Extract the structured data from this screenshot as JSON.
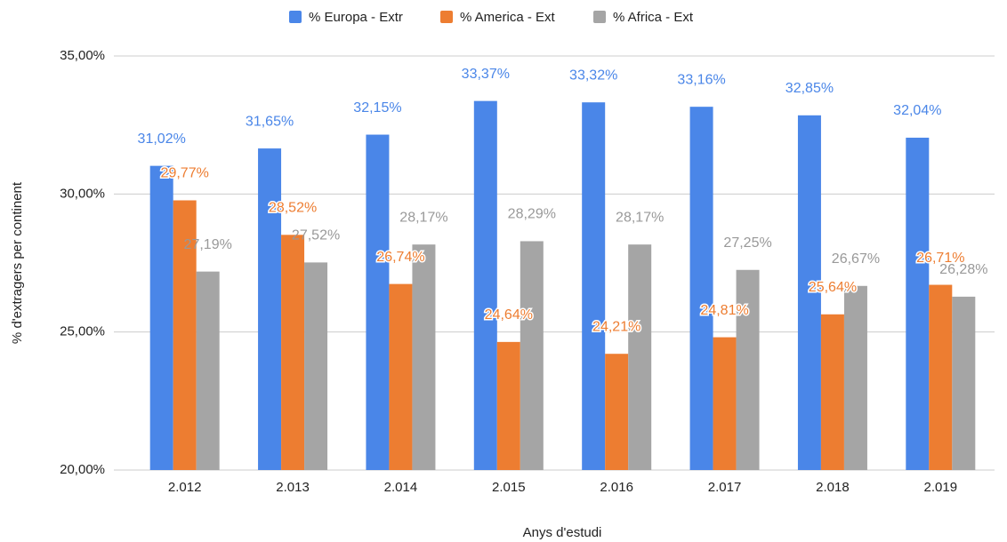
{
  "chart_data": {
    "type": "bar",
    "x_label": "Anys d'estudi",
    "y_label": "% d'extragers per continent",
    "categories": [
      "2.012",
      "2.013",
      "2.014",
      "2.015",
      "2.016",
      "2.017",
      "2.018",
      "2.019"
    ],
    "series": [
      {
        "name": "% Europa - Extr",
        "color": "#4a86e8",
        "values": [
          31.02,
          31.65,
          32.15,
          33.37,
          33.32,
          33.16,
          32.85,
          32.04
        ],
        "value_labels": [
          "31,02%",
          "31,65%",
          "32,15%",
          "33,37%",
          "33,32%",
          "33,16%",
          "32,85%",
          "32,04%"
        ]
      },
      {
        "name": "% America - Ext",
        "color": "#ed7d31",
        "values": [
          29.77,
          28.52,
          26.74,
          24.64,
          24.21,
          24.81,
          25.64,
          26.71
        ],
        "value_labels": [
          "29,77%",
          "28,52%",
          "26,74%",
          "24,64%",
          "24,21%",
          "24,81%",
          "25,64%",
          "26,71%"
        ]
      },
      {
        "name": "% Africa - Ext",
        "color": "#a5a5a5",
        "values": [
          27.19,
          27.52,
          28.17,
          28.29,
          28.17,
          27.25,
          26.67,
          26.28
        ],
        "value_labels": [
          "27,19%",
          "27,52%",
          "28,17%",
          "28,29%",
          "28,17%",
          "27,25%",
          "26,67%",
          "26,28%"
        ]
      }
    ],
    "ylim": [
      20,
      35
    ],
    "yticks": [
      {
        "value": 20,
        "label": "20,00%"
      },
      {
        "value": 25,
        "label": "25,00%"
      },
      {
        "value": 30,
        "label": "30,00%"
      },
      {
        "value": 35,
        "label": "35,00%"
      }
    ],
    "grid": true,
    "legend": "top"
  }
}
